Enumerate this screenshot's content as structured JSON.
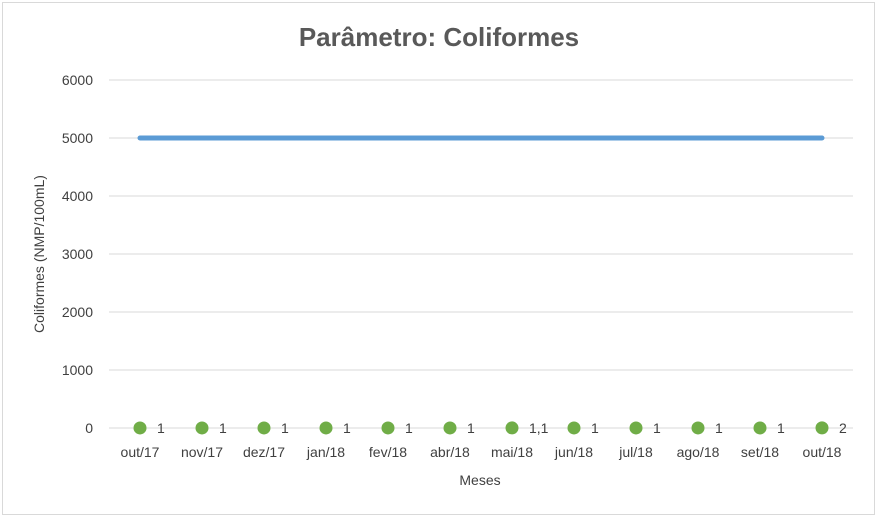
{
  "chart_data": {
    "type": "line",
    "title": "Parâmetro: Coliformes",
    "xlabel": "Meses",
    "ylabel": "Coliformes (NMP/100mL)",
    "ylim": [
      0,
      6000
    ],
    "yticks": [
      0,
      1000,
      2000,
      3000,
      4000,
      5000,
      6000
    ],
    "grid": true,
    "categories": [
      "out/17",
      "nov/17",
      "dez/17",
      "jan/18",
      "fev/18",
      "abr/18",
      "mai/18",
      "jun/18",
      "jul/18",
      "ago/18",
      "set/18",
      "out/18"
    ],
    "series": [
      {
        "values": [
          5000,
          5000,
          5000,
          5000,
          5000,
          5000,
          5000,
          5000,
          5000,
          5000,
          5000,
          5000
        ],
        "color": "#5b9bd5",
        "style": "line"
      },
      {
        "values": [
          1,
          1,
          1,
          1,
          1,
          1,
          1.1,
          1,
          1,
          1,
          1,
          2
        ],
        "labels": [
          "1",
          "1",
          "1",
          "1",
          "1",
          "1",
          "1,1",
          "1",
          "1",
          "1",
          "1",
          "2"
        ],
        "color": "#70ad47",
        "style": "markers"
      }
    ]
  }
}
